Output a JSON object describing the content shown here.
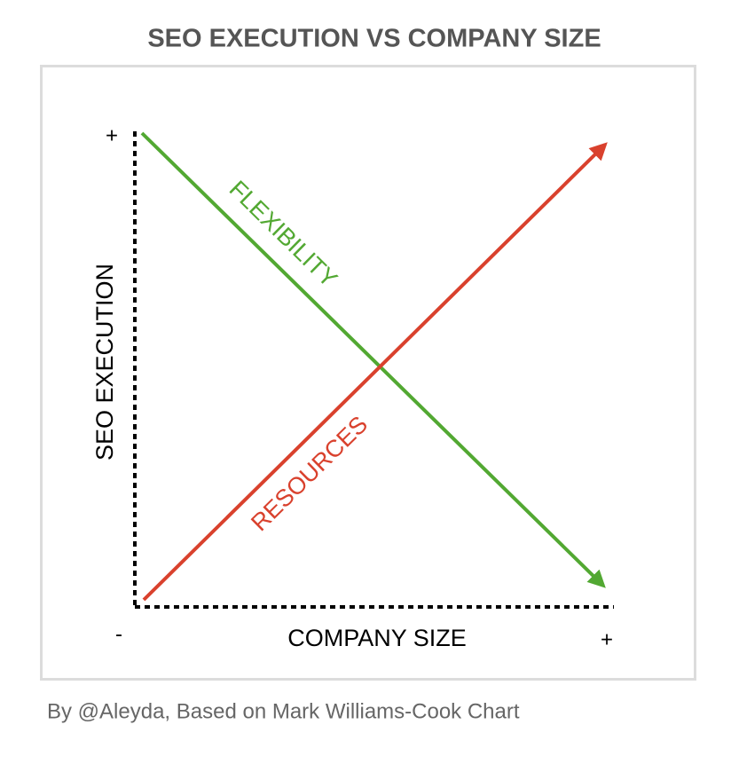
{
  "title": "SEO EXECUTION VS COMPANY SIZE",
  "y_axis": {
    "label": "SEO EXECUTION",
    "high": "+"
  },
  "x_axis": {
    "label": "COMPANY SIZE",
    "low": "-",
    "high": "+"
  },
  "lines": [
    {
      "label": "FLEXIBILITY"
    },
    {
      "label": "RESOURCES"
    }
  ],
  "credit": "By @Aleyda, Based on Mark Williams-Cook Chart"
}
